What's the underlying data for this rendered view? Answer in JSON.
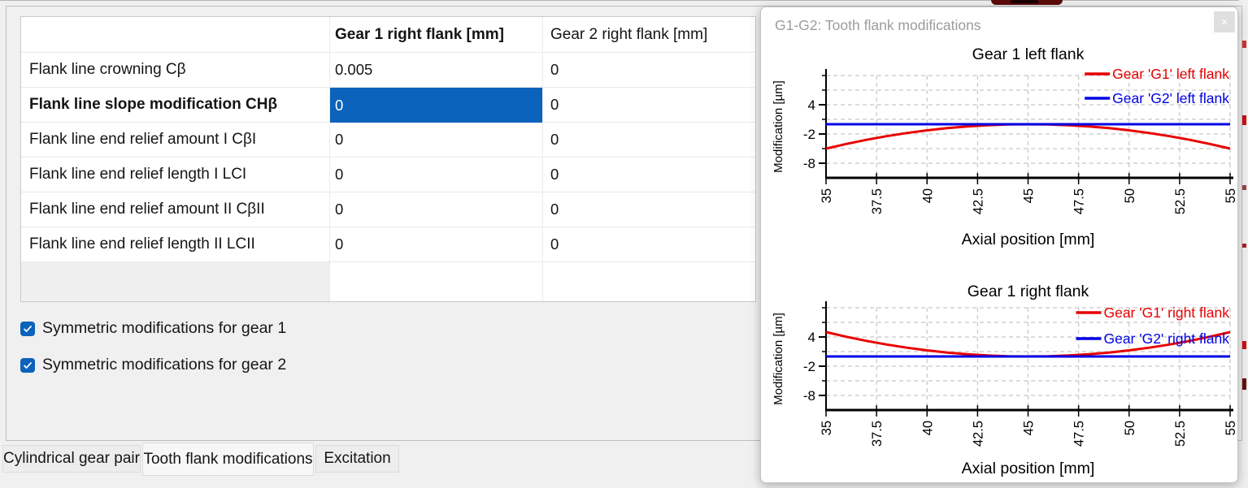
{
  "colors": {
    "accent_blue": "#0b63bb",
    "series_red": "#e80000",
    "series_blue": "#0000e6",
    "grid_gray": "#c6c6c6"
  },
  "table": {
    "columns": [
      "",
      "Gear 1 right flank [mm]",
      "Gear 2 right flank [mm]"
    ],
    "rows": [
      {
        "label": "Flank line crowning Cβ",
        "gear1": "0.005",
        "gear2": "0"
      },
      {
        "label": "Flank line slope modification CHβ",
        "gear1": "0",
        "gear2": "0"
      },
      {
        "label": "Flank line end relief amount I CβI",
        "gear1": "0",
        "gear2": "0"
      },
      {
        "label": "Flank line end relief length I LCI",
        "gear1": "0",
        "gear2": "0"
      },
      {
        "label": "Flank line end relief amount II CβII",
        "gear1": "0",
        "gear2": "0"
      },
      {
        "label": "Flank line end relief length II LCII",
        "gear1": "0",
        "gear2": "0"
      }
    ]
  },
  "checkboxes": [
    {
      "label": "Symmetric modifications for gear 1",
      "checked": true
    },
    {
      "label": "Symmetric modifications for gear 2",
      "checked": true
    }
  ],
  "tabs": [
    {
      "label": "Cylindrical gear pair",
      "active": false
    },
    {
      "label": "Tooth flank modifications",
      "active": true
    },
    {
      "label": "Excitation",
      "active": false
    }
  ],
  "dialog": {
    "title": "G1-G2: Tooth flank modifications",
    "close_label": "×"
  },
  "chart_data": [
    {
      "type": "line",
      "title": "Gear 1 left flank",
      "xlabel": "Axial position [mm]",
      "ylabel": "Modification [µm]",
      "xlim": [
        35,
        55
      ],
      "ylim": [
        -11,
        10
      ],
      "x_ticks": [
        35,
        37.5,
        40,
        42.5,
        45,
        47.5,
        50,
        52.5,
        55
      ],
      "x_tick_labels": [
        "35",
        "37.5",
        "40",
        "42.5",
        "45",
        "47.5",
        "50",
        "52.5",
        "55"
      ],
      "y_ticks_labeled": [
        4,
        -2,
        -8
      ],
      "y_ticks_minor": [
        10,
        7,
        1,
        -5
      ],
      "grid": true,
      "legend_position": "top-right",
      "x": [
        35,
        36,
        37,
        38,
        39,
        40,
        41,
        42,
        43,
        44,
        45,
        46,
        47,
        48,
        49,
        50,
        51,
        52,
        53,
        54,
        55
      ],
      "series": [
        {
          "name": "Gear 'G1' left flank",
          "color": "#e80000",
          "values": [
            -5,
            -4.05,
            -3.2,
            -2.45,
            -1.8,
            -1.25,
            -0.8,
            -0.45,
            -0.2,
            -0.05,
            0,
            -0.05,
            -0.2,
            -0.45,
            -0.8,
            -1.25,
            -1.8,
            -2.45,
            -3.2,
            -4.05,
            -5
          ]
        },
        {
          "name": "Gear 'G2' left flank",
          "color": "#0000e6",
          "values": [
            0,
            0,
            0,
            0,
            0,
            0,
            0,
            0,
            0,
            0,
            0,
            0,
            0,
            0,
            0,
            0,
            0,
            0,
            0,
            0,
            0
          ]
        }
      ]
    },
    {
      "type": "line",
      "title": "Gear 1 right flank",
      "xlabel": "Axial position [mm]",
      "ylabel": "Modification [µm]",
      "xlim": [
        35,
        55
      ],
      "ylim": [
        -11,
        10
      ],
      "x_ticks": [
        35,
        37.5,
        40,
        42.5,
        45,
        47.5,
        50,
        52.5,
        55
      ],
      "x_tick_labels": [
        "35",
        "37.5",
        "40",
        "42.5",
        "45",
        "47.5",
        "50",
        "52.5",
        "55"
      ],
      "y_ticks_labeled": [
        4,
        -2,
        -8
      ],
      "y_ticks_minor": [
        10,
        7,
        1,
        -5
      ],
      "grid": true,
      "legend_position": "top-right",
      "x": [
        35,
        36,
        37,
        38,
        39,
        40,
        41,
        42,
        43,
        44,
        45,
        46,
        47,
        48,
        49,
        50,
        51,
        52,
        53,
        54,
        55
      ],
      "series": [
        {
          "name": "Gear 'G1' right flank",
          "color": "#e80000",
          "values": [
            5,
            4.05,
            3.2,
            2.45,
            1.8,
            1.25,
            0.8,
            0.45,
            0.2,
            0.05,
            0,
            0.05,
            0.2,
            0.45,
            0.8,
            1.25,
            1.8,
            2.45,
            3.2,
            4.05,
            5
          ]
        },
        {
          "name": "Gear 'G2' right flank",
          "color": "#0000e6",
          "values": [
            0,
            0,
            0,
            0,
            0,
            0,
            0,
            0,
            0,
            0,
            0,
            0,
            0,
            0,
            0,
            0,
            0,
            0,
            0,
            0,
            0
          ]
        }
      ]
    }
  ]
}
